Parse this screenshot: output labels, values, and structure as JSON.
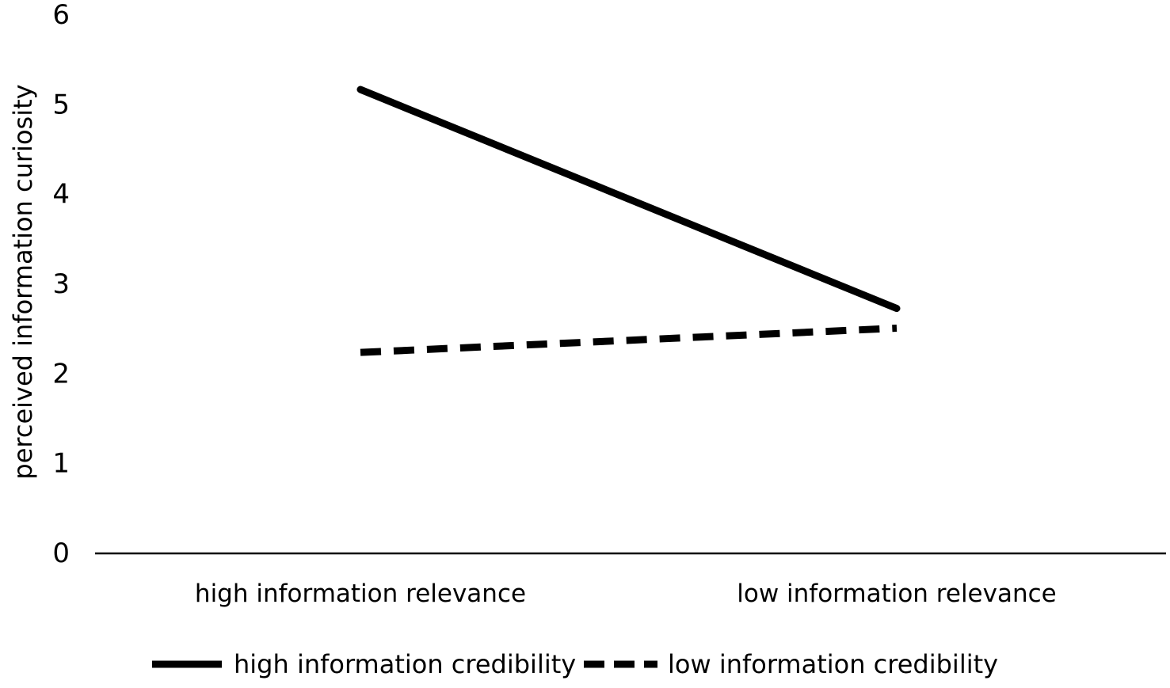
{
  "chart_data": {
    "type": "line",
    "categories": [
      "high information relevance",
      "low information relevance"
    ],
    "series": [
      {
        "name": "high information credibility",
        "values": [
          5.17,
          2.73
        ],
        "style": "solid",
        "color": "#000000"
      },
      {
        "name": "low information credibility",
        "values": [
          2.24,
          2.51
        ],
        "style": "dashed",
        "color": "#000000"
      }
    ],
    "title": "",
    "xlabel": "",
    "ylabel": "perceived information curiosity",
    "ylim": [
      0,
      6
    ],
    "yticks": [
      0,
      1,
      2,
      3,
      4,
      5,
      6
    ],
    "grid": false,
    "legend_position": "bottom"
  }
}
